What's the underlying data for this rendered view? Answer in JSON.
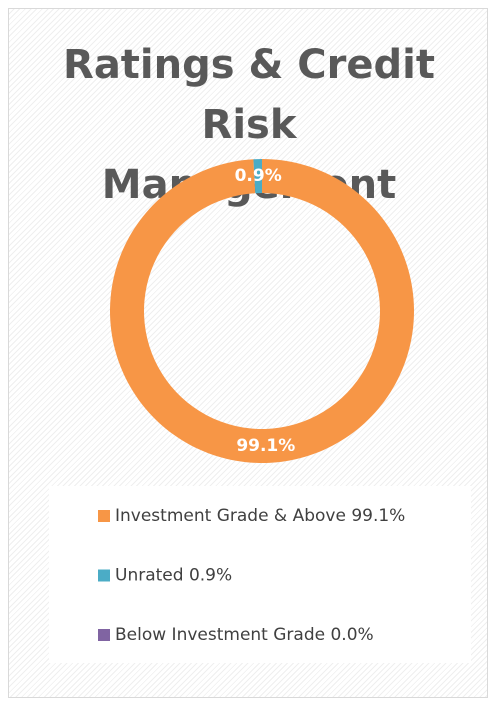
{
  "chart_data": {
    "type": "donut",
    "title": "Ratings & Credit Risk Management",
    "categories": [
      "Investment Grade & Above 99.1%",
      "Unrated 0.9%",
      "Below Investment Grade 0.0%"
    ],
    "values": [
      99.1,
      0.9,
      0.0
    ],
    "value_labels": [
      "99.1%",
      "0.9%",
      null
    ],
    "colors": [
      "#f79646",
      "#4bacc6",
      "#8064a2"
    ],
    "legend": "bottom"
  }
}
